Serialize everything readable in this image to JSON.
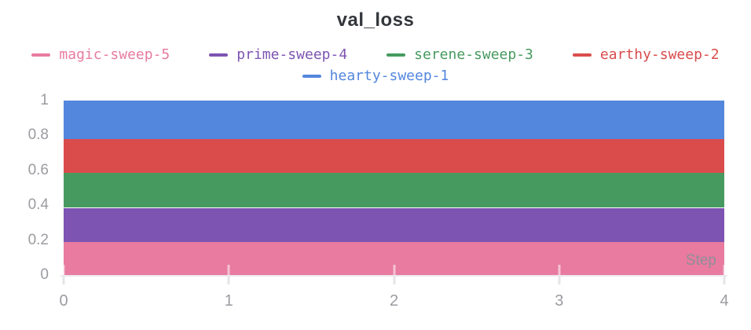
{
  "title": "val_loss",
  "colors": {
    "title_text": "#33373c",
    "axis_tick_text": "#9b9ba1",
    "axis_line": "#eaeaee",
    "step_label_text": "#8f8f98",
    "background": "#ffffff"
  },
  "chart_data": {
    "type": "area",
    "stacked": true,
    "title": "val_loss",
    "xlabel": "Step",
    "ylabel": "",
    "xlim": [
      0,
      4
    ],
    "ylim": [
      0,
      1
    ],
    "xticks": [
      "0",
      "1",
      "2",
      "3",
      "4"
    ],
    "yticks": [
      "1",
      "0.8",
      "0.6",
      "0.4",
      "0.2",
      "0"
    ],
    "ytick_values": [
      1,
      0.8,
      0.6,
      0.4,
      0.2,
      0
    ],
    "xtick_values": [
      0,
      1,
      2,
      3,
      4
    ],
    "grid": "x-tick-stubs-only",
    "legend_position": "top",
    "x": [
      0,
      4
    ],
    "series": [
      {
        "name": "magic-sweep-5",
        "color": "#E87B9F",
        "values": [
          0.19,
          0.19
        ],
        "band": [
          0.0,
          0.19
        ]
      },
      {
        "name": "prime-sweep-4",
        "color": "#7D54B2",
        "values": [
          0.195,
          0.195
        ],
        "band": [
          0.19,
          0.385
        ]
      },
      {
        "name": "serene-sweep-3",
        "color": "#479A5F",
        "values": [
          0.2,
          0.2
        ],
        "band": [
          0.385,
          0.585
        ]
      },
      {
        "name": "earthy-sweep-2",
        "color": "#DA4C4C",
        "values": [
          0.195,
          0.195
        ],
        "band": [
          0.585,
          0.78
        ]
      },
      {
        "name": "hearty-sweep-1",
        "color": "#5387DD",
        "values": [
          0.22,
          0.22
        ],
        "band": [
          0.78,
          1.0
        ]
      }
    ]
  }
}
